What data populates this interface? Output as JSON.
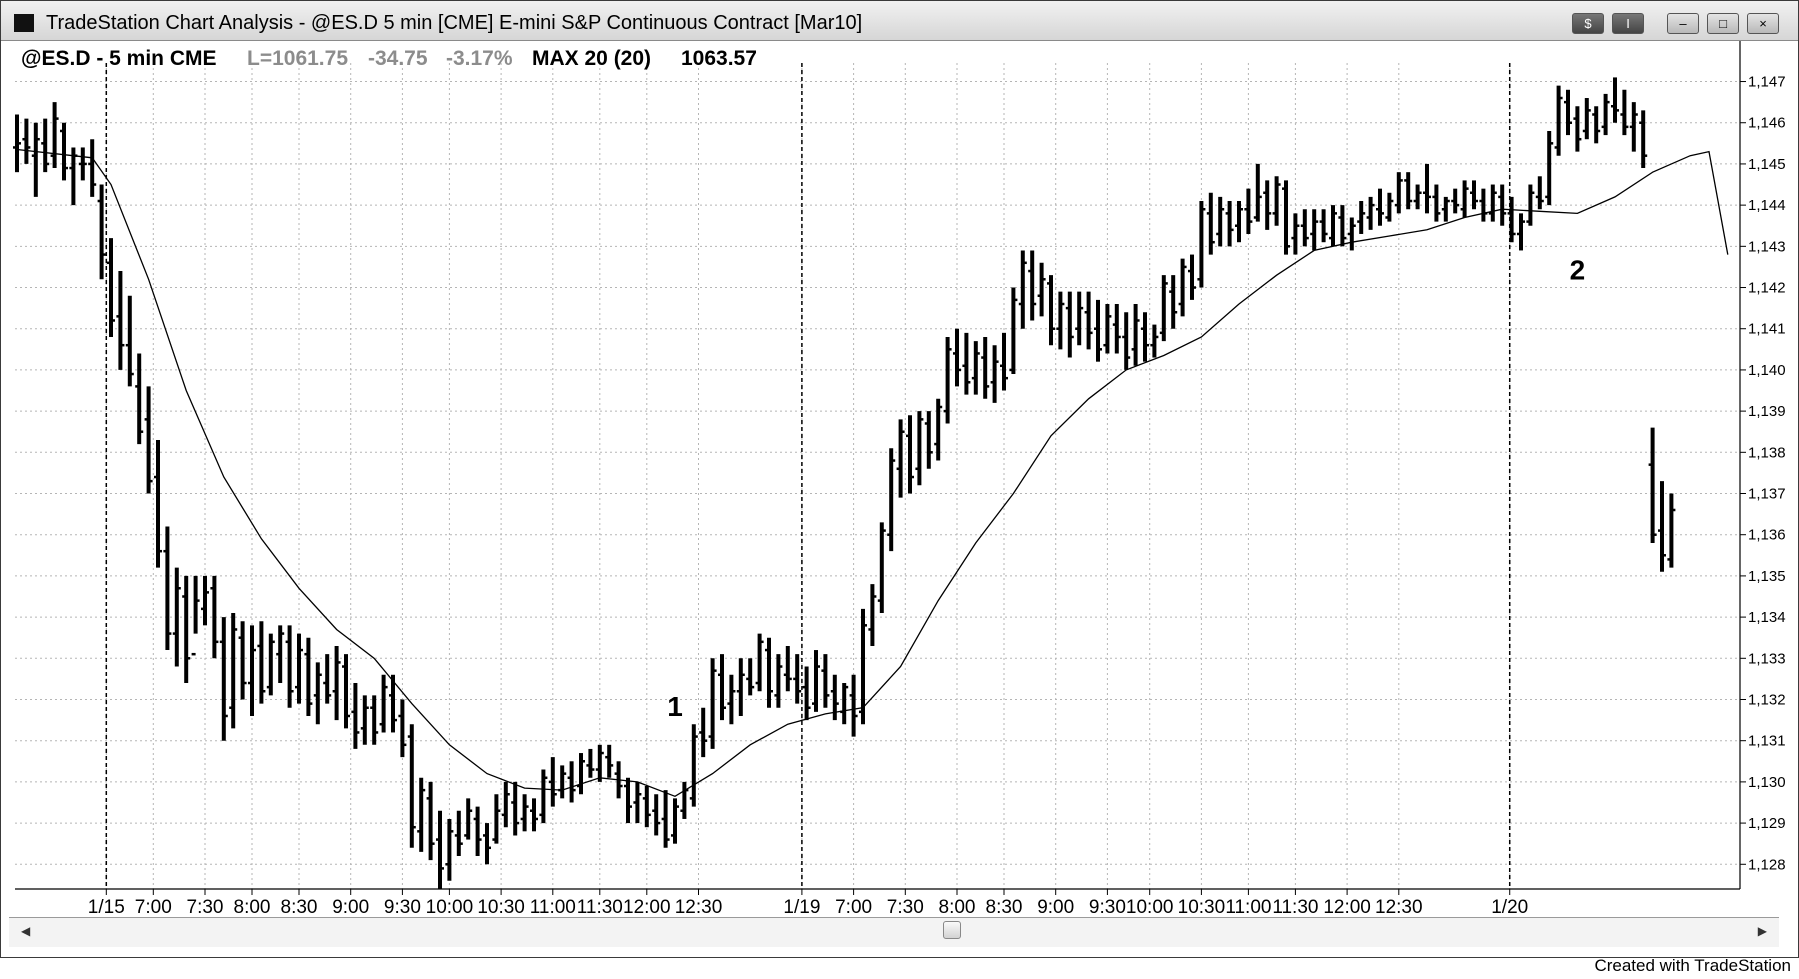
{
  "window": {
    "title": "TradeStation Chart Analysis - @ES.D 5 min [CME]  E-mini S&P Continuous Contract [Mar10]",
    "buttons": {
      "symbol": "$",
      "indicator": "I",
      "minimize": "–",
      "maximize": "□",
      "close": "×"
    }
  },
  "header": {
    "symbol": "@ES.D - 5 min CME",
    "last": "L=1061.75",
    "change": "-34.75",
    "change_pct": "-3.17%",
    "indicator": "MAX 20 (20)",
    "indicator_value": "1063.57"
  },
  "colors": {
    "bars": "#000000",
    "grid": "#b5b5b5",
    "header_gray": "#8c8c8c"
  },
  "chart_data": {
    "type": "ohlc",
    "ylim": [
      1127.4,
      1147.45
    ],
    "y_ticks": [
      "1,128",
      "1,129",
      "1,130",
      "1,131",
      "1,132",
      "1,133",
      "1,134",
      "1,135",
      "1,136",
      "1,137",
      "1,138",
      "1,139",
      "1,140",
      "1,141",
      "1,142",
      "1,143",
      "1,144",
      "1,145",
      "1,146",
      "1,147"
    ],
    "x_ticks": [
      "1/15",
      "7:00",
      "7:30",
      "8:00",
      "8:30",
      "9:00",
      "9:30",
      "10:00",
      "10:30",
      "11:00",
      "11:30",
      "12:00",
      "12:30",
      "1/19",
      "7:00",
      "7:30",
      "8:00",
      "8:30",
      "9:00",
      "9:30",
      "10:00",
      "10:30",
      "11:00",
      "11:30",
      "12:00",
      "12:30",
      "1/20"
    ],
    "session_breaks": [
      "1/15",
      "1/19",
      "1/20"
    ],
    "annotations": [
      {
        "text": "1",
        "x": 70,
        "y": 1131.6
      },
      {
        "text": "2",
        "x": 166,
        "y": 1142.2
      }
    ],
    "bars": [
      [
        1145.4,
        1146.2,
        1144.8,
        1145.5
      ],
      [
        1145.6,
        1146.1,
        1145.0,
        1145.4
      ],
      [
        1145.2,
        1146.0,
        1144.2,
        1145.6
      ],
      [
        1145.5,
        1146.1,
        1144.8,
        1145.0
      ],
      [
        1145.2,
        1146.5,
        1144.9,
        1146.1
      ],
      [
        1145.8,
        1146.0,
        1144.6,
        1144.9
      ],
      [
        1144.9,
        1145.4,
        1144.0,
        1145.2
      ],
      [
        1145.0,
        1145.4,
        1144.6,
        1145.0
      ],
      [
        1145.0,
        1145.6,
        1144.2,
        1144.5
      ],
      [
        1144.1,
        1144.5,
        1142.2,
        1142.8
      ],
      [
        1142.6,
        1143.2,
        1140.8,
        1141.2
      ],
      [
        1141.3,
        1142.4,
        1140.0,
        1140.6
      ],
      [
        1140.6,
        1141.8,
        1139.6,
        1139.9
      ],
      [
        1139.6,
        1140.4,
        1138.2,
        1138.5
      ],
      [
        1138.8,
        1139.6,
        1137.0,
        1137.3
      ],
      [
        1137.4,
        1138.3,
        1135.2,
        1135.6
      ],
      [
        1135.6,
        1136.2,
        1133.2,
        1133.6
      ],
      [
        1133.6,
        1135.2,
        1132.8,
        1134.7
      ],
      [
        1134.5,
        1135.0,
        1132.4,
        1133.0
      ],
      [
        1133.1,
        1135.0,
        1133.6,
        1134.4
      ],
      [
        1134.2,
        1135.0,
        1133.8,
        1134.6
      ],
      [
        1134.7,
        1135.0,
        1133.0,
        1133.4
      ],
      [
        1133.4,
        1134.0,
        1131.0,
        1131.6
      ],
      [
        1131.8,
        1134.1,
        1131.3,
        1133.7
      ],
      [
        1133.5,
        1133.9,
        1132.0,
        1132.4
      ],
      [
        1132.4,
        1133.8,
        1131.6,
        1133.2
      ],
      [
        1133.3,
        1133.9,
        1131.9,
        1132.2
      ],
      [
        1132.3,
        1133.6,
        1132.1,
        1133.4
      ],
      [
        1133.1,
        1133.8,
        1132.4,
        1133.6
      ],
      [
        1133.4,
        1133.8,
        1131.8,
        1132.2
      ],
      [
        1132.3,
        1133.6,
        1131.9,
        1133.2
      ],
      [
        1133.1,
        1133.5,
        1131.6,
        1131.9
      ],
      [
        1132.1,
        1132.9,
        1131.4,
        1132.6
      ],
      [
        1132.4,
        1133.1,
        1131.9,
        1132.1
      ],
      [
        1132.2,
        1133.3,
        1131.5,
        1132.9
      ],
      [
        1132.8,
        1133.1,
        1131.3,
        1131.6
      ],
      [
        1131.7,
        1132.4,
        1130.8,
        1131.2
      ],
      [
        1131.3,
        1132.1,
        1130.9,
        1131.8
      ],
      [
        1131.8,
        1132.1,
        1130.9,
        1131.2
      ],
      [
        1131.4,
        1132.6,
        1131.2,
        1132.3
      ],
      [
        1132.1,
        1132.6,
        1131.2,
        1131.5
      ],
      [
        1131.6,
        1132.0,
        1130.6,
        1130.9
      ],
      [
        1131.1,
        1131.4,
        1128.4,
        1128.9
      ],
      [
        1128.8,
        1130.1,
        1128.3,
        1129.8
      ],
      [
        1129.6,
        1130.0,
        1128.1,
        1128.5
      ],
      [
        1128.6,
        1129.3,
        1127.4,
        1127.9
      ],
      [
        1128.0,
        1129.1,
        1127.6,
        1128.8
      ],
      [
        1128.7,
        1129.3,
        1128.2,
        1128.5
      ],
      [
        1128.7,
        1129.6,
        1128.6,
        1129.3
      ],
      [
        1129.1,
        1129.4,
        1128.2,
        1128.6
      ],
      [
        1128.7,
        1129.0,
        1128.0,
        1128.4
      ],
      [
        1128.6,
        1129.7,
        1128.5,
        1129.3
      ],
      [
        1129.2,
        1130.0,
        1128.9,
        1129.7
      ],
      [
        1129.5,
        1130.0,
        1128.7,
        1129.0
      ],
      [
        1129.1,
        1129.7,
        1128.8,
        1129.4
      ],
      [
        1129.3,
        1129.6,
        1128.8,
        1129.1
      ],
      [
        1129.2,
        1130.3,
        1129.0,
        1130.1
      ],
      [
        1130.0,
        1130.6,
        1129.4,
        1129.7
      ],
      [
        1129.8,
        1130.4,
        1129.6,
        1130.2
      ],
      [
        1130.1,
        1130.5,
        1129.5,
        1129.8
      ],
      [
        1129.9,
        1130.7,
        1129.7,
        1130.5
      ],
      [
        1130.4,
        1130.8,
        1130.1,
        1130.3
      ],
      [
        1130.3,
        1130.9,
        1130.0,
        1130.7
      ],
      [
        1130.6,
        1130.9,
        1130.1,
        1130.4
      ],
      [
        1130.2,
        1130.5,
        1129.6,
        1129.9
      ],
      [
        1129.9,
        1130.1,
        1129.0,
        1129.4
      ],
      [
        1129.5,
        1130.0,
        1129.0,
        1129.7
      ],
      [
        1129.6,
        1129.9,
        1128.9,
        1129.2
      ],
      [
        1129.3,
        1129.7,
        1128.7,
        1129.0
      ],
      [
        1129.1,
        1129.8,
        1128.4,
        1128.6
      ],
      [
        1128.7,
        1129.6,
        1128.5,
        1129.4
      ],
      [
        1129.3,
        1130.0,
        1129.1,
        1129.8
      ],
      [
        1129.6,
        1131.4,
        1129.4,
        1131.1
      ],
      [
        1131.2,
        1131.8,
        1130.6,
        1131.0
      ],
      [
        1131.1,
        1133.0,
        1130.8,
        1132.7
      ],
      [
        1132.6,
        1133.1,
        1131.5,
        1131.8
      ],
      [
        1131.9,
        1132.6,
        1131.4,
        1132.2
      ],
      [
        1132.2,
        1133.0,
        1131.6,
        1132.6
      ],
      [
        1132.5,
        1133.0,
        1132.1,
        1132.3
      ],
      [
        1132.4,
        1133.6,
        1132.2,
        1133.4
      ],
      [
        1133.2,
        1133.5,
        1131.8,
        1132.2
      ],
      [
        1132.1,
        1133.1,
        1131.8,
        1132.8
      ],
      [
        1132.6,
        1133.3,
        1132.2,
        1132.5
      ],
      [
        1132.5,
        1133.1,
        1131.9,
        1132.2
      ],
      [
        1132.3,
        1132.8,
        1131.5,
        1131.8
      ],
      [
        1131.9,
        1133.2,
        1131.7,
        1132.8
      ],
      [
        1132.7,
        1133.1,
        1131.8,
        1132.1
      ],
      [
        1132.2,
        1132.6,
        1131.5,
        1131.9
      ],
      [
        1131.7,
        1132.4,
        1131.4,
        1132.3
      ],
      [
        1132.1,
        1132.6,
        1131.1,
        1131.6
      ],
      [
        1131.7,
        1134.2,
        1131.4,
        1133.8
      ],
      [
        1133.7,
        1134.8,
        1133.3,
        1134.5
      ],
      [
        1134.4,
        1136.3,
        1134.1,
        1136.1
      ],
      [
        1136.0,
        1138.1,
        1135.6,
        1137.8
      ],
      [
        1137.6,
        1138.8,
        1136.9,
        1138.5
      ],
      [
        1138.4,
        1138.9,
        1137.0,
        1137.4
      ],
      [
        1137.6,
        1139.0,
        1137.2,
        1138.8
      ],
      [
        1138.7,
        1139.0,
        1137.6,
        1138.0
      ],
      [
        1138.2,
        1139.3,
        1137.8,
        1139.1
      ],
      [
        1139.0,
        1140.8,
        1138.7,
        1140.5
      ],
      [
        1140.4,
        1141.0,
        1139.6,
        1140.0
      ],
      [
        1140.1,
        1140.9,
        1139.4,
        1139.7
      ],
      [
        1139.8,
        1140.7,
        1139.4,
        1140.4
      ],
      [
        1140.3,
        1140.8,
        1139.3,
        1139.6
      ],
      [
        1139.7,
        1140.6,
        1139.2,
        1140.2
      ],
      [
        1140.1,
        1140.9,
        1139.5,
        1139.8
      ],
      [
        1140.0,
        1142.0,
        1139.9,
        1141.7
      ],
      [
        1141.6,
        1142.9,
        1141.0,
        1142.6
      ],
      [
        1142.4,
        1142.9,
        1141.2,
        1141.6
      ],
      [
        1141.8,
        1142.6,
        1141.3,
        1142.2
      ],
      [
        1142.1,
        1142.3,
        1140.6,
        1141.0
      ],
      [
        1141.0,
        1141.9,
        1140.5,
        1141.6
      ],
      [
        1141.5,
        1141.9,
        1140.3,
        1140.8
      ],
      [
        1141.0,
        1141.9,
        1140.6,
        1141.5
      ],
      [
        1141.4,
        1141.9,
        1140.5,
        1140.9
      ],
      [
        1141.0,
        1141.7,
        1140.2,
        1140.5
      ],
      [
        1140.6,
        1141.6,
        1140.4,
        1141.3
      ],
      [
        1141.1,
        1141.6,
        1140.4,
        1140.8
      ],
      [
        1140.8,
        1141.4,
        1140.0,
        1140.3
      ],
      [
        1140.5,
        1141.6,
        1140.1,
        1141.2
      ],
      [
        1141.0,
        1141.4,
        1140.2,
        1140.6
      ],
      [
        1140.6,
        1141.1,
        1140.3,
        1140.8
      ],
      [
        1140.9,
        1142.3,
        1140.7,
        1142.1
      ],
      [
        1141.9,
        1142.3,
        1141.0,
        1141.4
      ],
      [
        1141.6,
        1142.7,
        1141.3,
        1142.5
      ],
      [
        1142.4,
        1142.8,
        1141.7,
        1142.0
      ],
      [
        1142.2,
        1144.1,
        1142.0,
        1143.9
      ],
      [
        1143.8,
        1144.3,
        1142.8,
        1143.1
      ],
      [
        1143.3,
        1144.2,
        1143.0,
        1143.9
      ],
      [
        1143.8,
        1144.1,
        1143.0,
        1143.4
      ],
      [
        1143.5,
        1144.1,
        1143.1,
        1143.9
      ],
      [
        1143.9,
        1144.4,
        1143.3,
        1143.6
      ],
      [
        1143.7,
        1145.0,
        1143.6,
        1144.2
      ],
      [
        1144.3,
        1144.6,
        1143.4,
        1143.8
      ],
      [
        1143.8,
        1144.7,
        1143.5,
        1144.5
      ],
      [
        1144.4,
        1144.6,
        1142.8,
        1143.0
      ],
      [
        1143.2,
        1143.8,
        1142.8,
        1143.5
      ],
      [
        1143.5,
        1143.9,
        1143.0,
        1143.2
      ],
      [
        1143.3,
        1143.9,
        1142.9,
        1143.6
      ],
      [
        1143.6,
        1143.9,
        1143.1,
        1143.3
      ],
      [
        1143.2,
        1144.0,
        1143.0,
        1143.8
      ],
      [
        1143.7,
        1144.0,
        1143.0,
        1143.2
      ],
      [
        1143.3,
        1143.7,
        1142.9,
        1143.5
      ],
      [
        1143.6,
        1144.1,
        1143.3,
        1143.8
      ],
      [
        1143.7,
        1144.2,
        1143.4,
        1144.0
      ],
      [
        1143.9,
        1144.4,
        1143.5,
        1143.8
      ],
      [
        1143.7,
        1144.3,
        1143.6,
        1144.1
      ],
      [
        1144.0,
        1144.8,
        1143.8,
        1144.6
      ],
      [
        1144.6,
        1144.8,
        1143.9,
        1144.1
      ],
      [
        1144.1,
        1144.5,
        1143.9,
        1144.3
      ],
      [
        1144.3,
        1145.0,
        1143.8,
        1144.2
      ],
      [
        1144.2,
        1144.5,
        1143.6,
        1143.8
      ],
      [
        1143.9,
        1144.2,
        1143.6,
        1144.1
      ],
      [
        1144.1,
        1144.4,
        1143.8,
        1144.0
      ],
      [
        1143.9,
        1144.6,
        1143.7,
        1144.4
      ],
      [
        1144.3,
        1144.6,
        1143.9,
        1144.1
      ],
      [
        1144.1,
        1144.4,
        1143.6,
        1143.8
      ],
      [
        1143.8,
        1144.5,
        1143.6,
        1144.3
      ],
      [
        1144.2,
        1144.5,
        1143.5,
        1143.8
      ],
      [
        1143.8,
        1144.2,
        1143.1,
        1143.3
      ],
      [
        1143.3,
        1143.8,
        1142.9,
        1143.6
      ],
      [
        1143.6,
        1144.5,
        1143.5,
        1144.3
      ],
      [
        1144.2,
        1144.7,
        1143.9,
        1144.1
      ],
      [
        1144.2,
        1145.8,
        1144.0,
        1145.5
      ],
      [
        1145.4,
        1146.9,
        1145.2,
        1146.6
      ],
      [
        1146.5,
        1146.8,
        1145.7,
        1146.0
      ],
      [
        1146.1,
        1146.4,
        1145.3,
        1145.6
      ],
      [
        1145.8,
        1146.6,
        1145.6,
        1146.3
      ],
      [
        1146.2,
        1146.4,
        1145.5,
        1145.8
      ],
      [
        1145.9,
        1146.7,
        1145.7,
        1146.5
      ],
      [
        1146.4,
        1147.1,
        1146.0,
        1146.3
      ],
      [
        1146.2,
        1146.8,
        1145.7,
        1145.9
      ],
      [
        1145.9,
        1146.5,
        1145.3,
        1146.2
      ],
      [
        1146.0,
        1146.3,
        1144.9,
        1145.2
      ],
      [
        1137.7,
        1138.6,
        1135.8,
        1136.0
      ],
      [
        1136.1,
        1137.3,
        1135.1,
        1135.5
      ],
      [
        1135.4,
        1137.0,
        1135.2,
        1136.6
      ]
    ],
    "moving_average": [
      [
        0,
        1145.35
      ],
      [
        8,
        1145.15
      ],
      [
        10,
        1144.5
      ],
      [
        14,
        1142.2
      ],
      [
        18,
        1139.5
      ],
      [
        22,
        1137.4
      ],
      [
        26,
        1135.9
      ],
      [
        30,
        1134.7
      ],
      [
        34,
        1133.7
      ],
      [
        38,
        1133.0
      ],
      [
        42,
        1131.9
      ],
      [
        46,
        1130.9
      ],
      [
        50,
        1130.2
      ],
      [
        54,
        1129.85
      ],
      [
        58,
        1129.8
      ],
      [
        62,
        1130.1
      ],
      [
        66,
        1130.0
      ],
      [
        70,
        1129.65
      ],
      [
        74,
        1130.2
      ],
      [
        78,
        1130.9
      ],
      [
        82,
        1131.4
      ],
      [
        86,
        1131.65
      ],
      [
        90,
        1131.8
      ],
      [
        94,
        1132.8
      ],
      [
        98,
        1134.4
      ],
      [
        102,
        1135.8
      ],
      [
        106,
        1137.0
      ],
      [
        110,
        1138.4
      ],
      [
        114,
        1139.3
      ],
      [
        118,
        1140.0
      ],
      [
        122,
        1140.35
      ],
      [
        126,
        1140.8
      ],
      [
        130,
        1141.6
      ],
      [
        134,
        1142.3
      ],
      [
        138,
        1142.9
      ],
      [
        142,
        1143.1
      ],
      [
        146,
        1143.25
      ],
      [
        150,
        1143.4
      ],
      [
        154,
        1143.7
      ],
      [
        158,
        1143.9
      ],
      [
        162,
        1143.85
      ],
      [
        166,
        1143.8
      ],
      [
        170,
        1144.2
      ],
      [
        174,
        1144.8
      ],
      [
        178,
        1145.2
      ],
      [
        180,
        1145.3
      ],
      [
        182,
        1142.8
      ]
    ]
  },
  "footer": {
    "credit": "Created with TradeStation"
  }
}
